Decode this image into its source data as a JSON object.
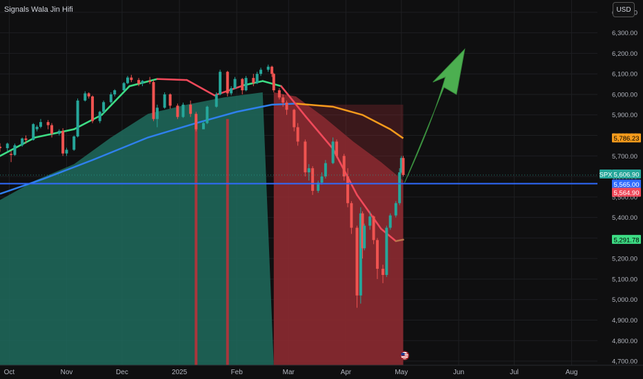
{
  "header": {
    "title": "Signals Wala Jin Hifi",
    "currency": "USD"
  },
  "colors": {
    "background": "#0f0f10",
    "grid": "#1e1f22",
    "bull": "#26a69a",
    "bear": "#ef5350",
    "green_area": "#1f6b5d",
    "red_area": "#8c2a30",
    "ema_fast_up": "#3ddc84",
    "ema_fast_down": "#f0495a",
    "sma_orange": "#f59b1c",
    "sma_blue": "#2f80ed",
    "hline": "#2f6bff",
    "arrow": "#4caf50"
  },
  "chart_data": {
    "type": "candlestick",
    "symbol": "SPX",
    "x_labels": [
      "Oct",
      "Nov",
      "Dec",
      "2025",
      "Feb",
      "Mar",
      "Apr",
      "May",
      "Jun",
      "Jul",
      "Aug"
    ],
    "x_label_dates": [
      "2024-10-01",
      "2024-11-01",
      "2024-12-01",
      "2025-01-01",
      "2025-02-01",
      "2025-03-01",
      "2025-04-01",
      "2025-05-01",
      "2025-06-01",
      "2025-07-01",
      "2025-08-01"
    ],
    "x_range": [
      "2024-09-26",
      "2025-08-15"
    ],
    "y_range": [
      4680,
      6460
    ],
    "y_ticks": [
      4700,
      4800,
      4900,
      5000,
      5100,
      5200,
      5300,
      5400,
      5500,
      5600,
      5700,
      5800,
      5900,
      6000,
      6100,
      6200,
      6300,
      6400
    ],
    "y_tick_labels": [
      "4,700.00",
      "4,800.00",
      "4,900.00",
      "5,000.00",
      "5,100.00",
      "5,200.00",
      "5,300.00",
      "5,400.00",
      "5,500.00",
      "5,600.00",
      "5,700.00",
      "5,800.00",
      "5,900.00",
      "6,000.00",
      "6,100.00",
      "6,200.00",
      "6,300.00",
      "6,400.00"
    ],
    "price_tags": [
      {
        "label": "5,786.23",
        "value": 5786.23,
        "color": "#f59b1c",
        "text_color": "#000000"
      },
      {
        "label": "SPX",
        "value": 5606.9,
        "color": "#26a69a",
        "text_color": "#ffffff"
      },
      {
        "label": "5,606.90",
        "value": 5606.9,
        "color": "#26a69a",
        "text_color": "#ffffff"
      },
      {
        "label": "5,565.00",
        "value": 5565.0,
        "color": "#2f6bff",
        "text_color": "#ffffff"
      },
      {
        "label": "5,564.90",
        "value": 5564.9,
        "color": "#f0495a",
        "text_color": "#ffffff"
      },
      {
        "label": "5,291.78",
        "value": 5291.78,
        "color": "#3ddc84",
        "text_color": "#000000"
      }
    ],
    "horizontal_line": 5565,
    "last_close": 5606.9,
    "background_zones": [
      {
        "from": "2024-09-26",
        "to": "2025-02-21",
        "color": "green"
      },
      {
        "from": "2025-02-21",
        "to": "2025-05-02",
        "color": "red"
      }
    ],
    "red_stripes": [
      "2025-01-10",
      "2025-01-27"
    ],
    "area_band": [
      [
        "2024-09-26",
        5485
      ],
      [
        "2024-10-15",
        5580
      ],
      [
        "2024-11-05",
        5660
      ],
      [
        "2024-11-25",
        5790
      ],
      [
        "2024-12-15",
        5905
      ],
      [
        "2025-01-05",
        5950
      ],
      [
        "2025-01-25",
        5985
      ],
      [
        "2025-02-15",
        6010
      ],
      [
        "2025-03-05",
        5990
      ],
      [
        "2025-03-20",
        5890
      ],
      [
        "2025-04-05",
        5770
      ],
      [
        "2025-04-20",
        5670
      ],
      [
        "2025-05-02",
        5580
      ]
    ],
    "ema_fast": [
      [
        "2024-09-26",
        5700
      ],
      [
        "2024-10-15",
        5790
      ],
      [
        "2024-11-05",
        5830
      ],
      [
        "2024-11-20",
        5900
      ],
      [
        "2024-12-05",
        6040
      ],
      [
        "2024-12-20",
        6075
      ],
      [
        "2025-01-05",
        6070
      ],
      [
        "2025-01-20",
        5995
      ],
      [
        "2025-02-05",
        6045
      ],
      [
        "2025-02-15",
        6065
      ],
      [
        "2025-02-25",
        6040
      ],
      [
        "2025-03-10",
        5895
      ],
      [
        "2025-03-25",
        5735
      ],
      [
        "2025-04-07",
        5510
      ],
      [
        "2025-04-20",
        5345
      ],
      [
        "2025-04-28",
        5285
      ],
      [
        "2025-05-02",
        5292
      ]
    ],
    "ema_fast_turn_date": "2024-12-10",
    "ema_fast_turn2_from": "2025-01-22",
    "ema_fast_turn2_to": "2025-02-10",
    "sma_blue": [
      [
        "2024-09-26",
        5515
      ],
      [
        "2024-10-20",
        5590
      ],
      [
        "2024-11-15",
        5680
      ],
      [
        "2024-12-15",
        5790
      ],
      [
        "2025-01-10",
        5860
      ],
      [
        "2025-02-01",
        5915
      ],
      [
        "2025-02-20",
        5950
      ],
      [
        "2025-03-05",
        5955
      ]
    ],
    "sma_orange": [
      [
        "2025-03-05",
        5955
      ],
      [
        "2025-03-25",
        5940
      ],
      [
        "2025-04-10",
        5900
      ],
      [
        "2025-04-25",
        5830
      ],
      [
        "2025-05-02",
        5786
      ]
    ],
    "candles": [
      [
        "2024-09-26",
        5745,
        5762,
        5720,
        5738
      ],
      [
        "2024-09-30",
        5738,
        5765,
        5720,
        5760
      ],
      [
        "2024-10-02",
        5710,
        5725,
        5670,
        5705
      ],
      [
        "2024-10-04",
        5705,
        5760,
        5700,
        5752
      ],
      [
        "2024-10-08",
        5752,
        5790,
        5745,
        5785
      ],
      [
        "2024-10-10",
        5785,
        5800,
        5760,
        5778
      ],
      [
        "2024-10-14",
        5778,
        5860,
        5775,
        5855
      ],
      [
        "2024-10-16",
        5830,
        5850,
        5820,
        5842
      ],
      [
        "2024-10-18",
        5842,
        5880,
        5835,
        5865
      ],
      [
        "2024-10-22",
        5865,
        5875,
        5830,
        5850
      ],
      [
        "2024-10-24",
        5850,
        5860,
        5790,
        5808
      ],
      [
        "2024-10-28",
        5808,
        5830,
        5800,
        5822
      ],
      [
        "2024-10-30",
        5822,
        5835,
        5700,
        5712
      ],
      [
        "2024-11-01",
        5712,
        5740,
        5700,
        5730
      ],
      [
        "2024-11-05",
        5730,
        5800,
        5725,
        5795
      ],
      [
        "2024-11-07",
        5795,
        5980,
        5790,
        5970
      ],
      [
        "2024-11-11",
        5970,
        6015,
        5965,
        6005
      ],
      [
        "2024-11-13",
        6005,
        6010,
        5980,
        5990
      ],
      [
        "2024-11-15",
        5990,
        5995,
        5860,
        5870
      ],
      [
        "2024-11-19",
        5870,
        5920,
        5860,
        5915
      ],
      [
        "2024-11-21",
        5915,
        5970,
        5905,
        5962
      ],
      [
        "2024-11-25",
        5962,
        6010,
        5955,
        6000
      ],
      [
        "2024-11-27",
        6000,
        6025,
        5990,
        6020
      ],
      [
        "2024-12-02",
        6020,
        6060,
        6015,
        6055
      ],
      [
        "2024-12-04",
        6055,
        6090,
        6050,
        6082
      ],
      [
        "2024-12-06",
        6082,
        6095,
        6060,
        6070
      ],
      [
        "2024-12-10",
        6070,
        6080,
        6040,
        6052
      ],
      [
        "2024-12-12",
        6052,
        6070,
        6040,
        6066
      ],
      [
        "2024-12-16",
        6066,
        6085,
        6050,
        6060
      ],
      [
        "2024-12-18",
        6060,
        6070,
        5870,
        5880
      ],
      [
        "2024-12-20",
        5880,
        5950,
        5840,
        5935
      ],
      [
        "2024-12-24",
        5935,
        6010,
        5930,
        6000
      ],
      [
        "2024-12-27",
        6000,
        6005,
        5930,
        5945
      ],
      [
        "2024-12-31",
        5945,
        5955,
        5880,
        5890
      ],
      [
        "2025-01-03",
        5890,
        5960,
        5885,
        5950
      ],
      [
        "2025-01-07",
        5950,
        5970,
        5890,
        5905
      ],
      [
        "2025-01-10",
        5905,
        5915,
        5820,
        5830
      ],
      [
        "2025-01-14",
        5830,
        5870,
        5830,
        5860
      ],
      [
        "2025-01-16",
        5860,
        5945,
        5855,
        5940
      ],
      [
        "2025-01-21",
        5940,
        6010,
        5935,
        6000
      ],
      [
        "2025-01-23",
        6000,
        6120,
        5995,
        6110
      ],
      [
        "2025-01-27",
        6110,
        6115,
        5990,
        6005
      ],
      [
        "2025-01-29",
        6005,
        6040,
        5995,
        6030
      ],
      [
        "2025-01-31",
        6030,
        6085,
        6025,
        6075
      ],
      [
        "2025-02-04",
        6075,
        6080,
        6000,
        6020
      ],
      [
        "2025-02-06",
        6020,
        6090,
        6015,
        6080
      ],
      [
        "2025-02-10",
        6080,
        6100,
        6040,
        6055
      ],
      [
        "2025-02-12",
        6055,
        6110,
        6050,
        6100
      ],
      [
        "2025-02-14",
        6100,
        6130,
        6090,
        6120
      ],
      [
        "2025-02-18",
        6120,
        6145,
        6110,
        6135
      ],
      [
        "2025-02-20",
        6135,
        6140,
        6085,
        6100
      ],
      [
        "2025-02-21",
        6100,
        6105,
        6010,
        6020
      ],
      [
        "2025-02-24",
        6020,
        6030,
        5975,
        5985
      ],
      [
        "2025-02-26",
        5985,
        6000,
        5940,
        5960
      ],
      [
        "2025-02-28",
        5960,
        5970,
        5900,
        5925
      ],
      [
        "2025-03-04",
        5925,
        5930,
        5820,
        5840
      ],
      [
        "2025-03-06",
        5840,
        5860,
        5750,
        5770
      ],
      [
        "2025-03-10",
        5770,
        5780,
        5600,
        5620
      ],
      [
        "2025-03-12",
        5620,
        5660,
        5580,
        5640
      ],
      [
        "2025-03-14",
        5640,
        5650,
        5510,
        5530
      ],
      [
        "2025-03-17",
        5530,
        5580,
        5520,
        5570
      ],
      [
        "2025-03-19",
        5570,
        5620,
        5560,
        5600
      ],
      [
        "2025-03-21",
        5600,
        5680,
        5590,
        5665
      ],
      [
        "2025-03-25",
        5665,
        5790,
        5660,
        5770
      ],
      [
        "2025-03-27",
        5770,
        5780,
        5690,
        5700
      ],
      [
        "2025-03-31",
        5700,
        5710,
        5580,
        5600
      ],
      [
        "2025-04-02",
        5600,
        5640,
        5450,
        5470
      ],
      [
        "2025-04-04",
        5470,
        5480,
        5320,
        5350
      ],
      [
        "2025-04-07",
        5350,
        5360,
        4960,
        5020
      ],
      [
        "2025-04-09",
        5020,
        5450,
        4980,
        5420
      ],
      [
        "2025-04-10",
        5420,
        5430,
        5200,
        5250
      ],
      [
        "2025-04-11",
        5250,
        5370,
        5240,
        5360
      ],
      [
        "2025-04-14",
        5360,
        5430,
        5340,
        5405
      ],
      [
        "2025-04-16",
        5405,
        5410,
        5270,
        5290
      ],
      [
        "2025-04-18",
        5290,
        5300,
        5100,
        5150
      ],
      [
        "2025-04-21",
        5150,
        5170,
        5080,
        5120
      ],
      [
        "2025-04-23",
        5120,
        5360,
        5110,
        5350
      ],
      [
        "2025-04-25",
        5350,
        5420,
        5340,
        5410
      ],
      [
        "2025-04-28",
        5410,
        5480,
        5400,
        5470
      ],
      [
        "2025-04-30",
        5470,
        5640,
        5460,
        5620
      ],
      [
        "2025-05-01",
        5620,
        5700,
        5615,
        5690
      ],
      [
        "2025-05-02",
        5690,
        5700,
        5600,
        5606.9
      ]
    ]
  }
}
